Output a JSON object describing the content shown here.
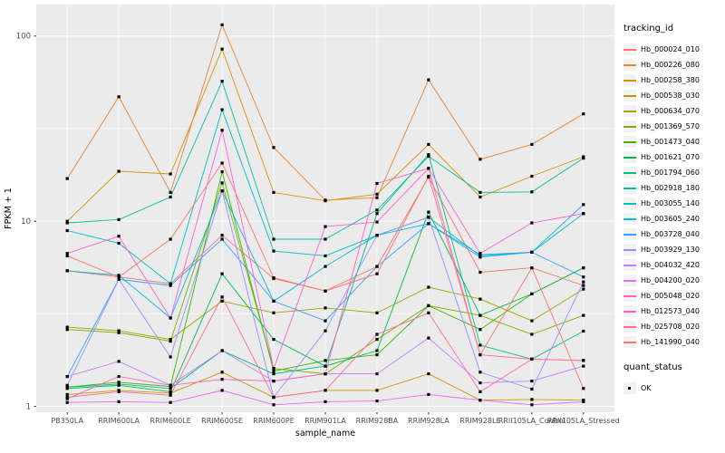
{
  "figure": {
    "panel_bg": "#EBEBEB",
    "grid_color": "#FFFFFF",
    "tick_label_color": "#4D4D4D",
    "axis_title_color": "#000000",
    "marker_color": "#000000"
  },
  "chart_data": {
    "type": "line",
    "title": "",
    "xlabel": "sample_name",
    "ylabel": "FPKM + 1",
    "y_scale": "log10",
    "y_ticks": [
      1,
      10,
      100
    ],
    "ylim": [
      0.93,
      148
    ],
    "grid": true,
    "legend_position": "right",
    "marker": "filled-square",
    "categories": [
      "PB350LA",
      "RRIM600LA",
      "RRIM600LE",
      "RRIM600SE",
      "RRIM600PE",
      "RRIM901LA",
      "RRIM928BA",
      "RRIM928LA",
      "RRIM928LE",
      "RRII105LA_Control",
      "RRII105LA_Stressed"
    ],
    "series": [
      {
        "name": "Hb_000024_010",
        "color": "#F8766D",
        "values": [
          5.4,
          5.0,
          4.6,
          8.4,
          4.9,
          4.2,
          5.7,
          17.3,
          5.3,
          5.6,
          4.5
        ]
      },
      {
        "name": "Hb_000226_080",
        "color": "#EA8331",
        "values": [
          17,
          47,
          14.3,
          115,
          25,
          13,
          13.4,
          58,
          21.6,
          26,
          38
        ]
      },
      {
        "name": "Hb_000258_380",
        "color": "#D89000",
        "values": [
          10,
          18.6,
          18,
          85,
          14.3,
          12.9,
          14,
          26,
          13.5,
          17.5,
          22.3
        ]
      },
      {
        "name": "Hb_000538_030",
        "color": "#C09B00",
        "values": [
          1.16,
          1.22,
          1.18,
          1.53,
          1.12,
          1.22,
          1.22,
          1.5,
          1.08,
          1.09,
          1.08
        ]
      },
      {
        "name": "Hb_000634_070",
        "color": "#A3A500",
        "values": [
          2.68,
          2.56,
          2.3,
          3.7,
          3.2,
          3.4,
          3.2,
          4.4,
          3.8,
          2.9,
          4.3
        ]
      },
      {
        "name": "Hb_001369_570",
        "color": "#7CAE00",
        "values": [
          2.6,
          2.5,
          2.25,
          16.1,
          1.6,
          1.5,
          2.3,
          3.5,
          3.1,
          2.45,
          3.1
        ]
      },
      {
        "name": "Hb_001473_040",
        "color": "#39B600",
        "values": [
          1.27,
          1.35,
          1.28,
          18.5,
          1.55,
          1.77,
          1.9,
          3.5,
          2.6,
          4.05,
          5.6
        ]
      },
      {
        "name": "Hb_001621_070",
        "color": "#00BB4E",
        "values": [
          1.25,
          1.3,
          1.2,
          5.2,
          2.3,
          1.65,
          2.0,
          11.2,
          3.1,
          4.05,
          5.6
        ]
      },
      {
        "name": "Hb_001794_060",
        "color": "#00BF7D",
        "values": [
          1.27,
          1.32,
          1.25,
          2.0,
          1.5,
          1.65,
          11.0,
          22.9,
          2.14,
          1.8,
          2.55
        ]
      },
      {
        "name": "Hb_002918_180",
        "color": "#00C1A3",
        "values": [
          9.8,
          10.2,
          13.5,
          57,
          8.0,
          8.0,
          11.5,
          22.4,
          14.3,
          14.4,
          21.9
        ]
      },
      {
        "name": "Hb_003055_140",
        "color": "#00BFC4",
        "values": [
          8.9,
          7.6,
          4.6,
          40,
          6.9,
          6.5,
          8.4,
          10.5,
          6.5,
          6.8,
          11.0
        ]
      },
      {
        "name": "Hb_003605_240",
        "color": "#00BAE0",
        "values": [
          5.4,
          5.1,
          3.0,
          14.6,
          3.7,
          5.7,
          8.4,
          9.7,
          6.6,
          6.8,
          12.3
        ]
      },
      {
        "name": "Hb_003728_040",
        "color": "#35A2FF",
        "values": [
          1.45,
          4.85,
          4.5,
          8.0,
          3.7,
          2.9,
          5.7,
          9.7,
          6.4,
          6.8,
          5.0
        ]
      },
      {
        "name": "Hb_003929_130",
        "color": "#9590FF",
        "values": [
          1.3,
          4.85,
          1.85,
          14.6,
          1.12,
          2.56,
          8.4,
          10.5,
          1.53,
          1.24,
          4.7
        ]
      },
      {
        "name": "Hb_004032_420",
        "color": "#C77CFF",
        "values": [
          1.45,
          1.75,
          1.3,
          2.0,
          1.37,
          1.5,
          1.5,
          2.34,
          1.34,
          1.37,
          1.65
        ]
      },
      {
        "name": "Hb_004200_020",
        "color": "#E76BF3",
        "values": [
          1.05,
          1.06,
          1.05,
          1.22,
          1.02,
          1.06,
          1.07,
          1.16,
          1.08,
          1.02,
          1.06
        ]
      },
      {
        "name": "Hb_005048_020",
        "color": "#FA62DB",
        "values": [
          6.7,
          8.3,
          3.0,
          31,
          1.6,
          9.35,
          9.9,
          19.3,
          6.7,
          9.8,
          11.0
        ]
      },
      {
        "name": "Hb_012573_040",
        "color": "#FF62BC",
        "values": [
          1.1,
          1.45,
          1.3,
          1.4,
          1.37,
          1.5,
          16.0,
          19.3,
          1.9,
          1.8,
          1.77
        ]
      },
      {
        "name": "Hb_025708_020",
        "color": "#FF6A98",
        "values": [
          1.12,
          1.2,
          1.15,
          3.9,
          1.12,
          1.22,
          2.45,
          3.2,
          1.2,
          1.8,
          1.77
        ]
      },
      {
        "name": "Hb_141990_040",
        "color": "#F8766D",
        "values": [
          6.5,
          5.0,
          8.0,
          20.6,
          4.95,
          4.2,
          5.2,
          17.5,
          1.9,
          5.6,
          1.25
        ]
      }
    ],
    "legend": {
      "series_title": "tracking_id",
      "status_title": "quant_status",
      "status_label": "OK"
    }
  }
}
